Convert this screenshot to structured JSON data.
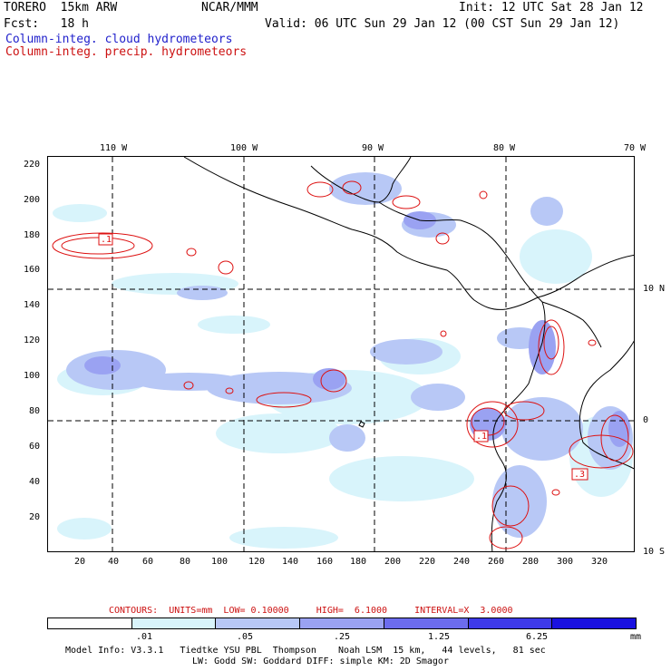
{
  "header": {
    "model": "TORERO  15km ARW",
    "org": "NCAR/MMM",
    "init": "Init: 12 UTC Sat 28 Jan 12",
    "fcst": "Fcst:   18 h",
    "valid": "Valid: 06 UTC Sun 29 Jan 12 (00 CST Sun 29 Jan 12)",
    "field1": "Column-integ. cloud hydrometeors",
    "field2": "Column-integ. precip. hydrometeors"
  },
  "axes": {
    "top_lon_labels": [
      "110 W",
      "100 W",
      "90 W",
      "80 W",
      "70 W"
    ],
    "right_lat_labels": [
      "10 N",
      "0",
      "10 S"
    ],
    "x_ticks": [
      "20",
      "40",
      "60",
      "80",
      "100",
      "120",
      "140",
      "160",
      "180",
      "200",
      "220",
      "240",
      "260",
      "280",
      "300",
      "320"
    ],
    "y_ticks": [
      "220",
      "200",
      "180",
      "160",
      "140",
      "120",
      "100",
      "80",
      "60",
      "40",
      "20"
    ]
  },
  "contour_labels": [
    ".1",
    ".1",
    ".3"
  ],
  "contours": "CONTOURS:  UNITS=mm  LOW= 0.10000     HIGH=  6.1000     INTERVAL=X  3.0000",
  "legend": {
    "unit": "mm",
    "ticks": [
      ".01",
      ".05",
      ".25",
      "1.25",
      "6.25"
    ],
    "colors": [
      "#ffffff",
      "#d8f4fb",
      "#b8c8f6",
      "#9aa2f2",
      "#6c6cee",
      "#3e3ae8",
      "#1a12e0"
    ]
  },
  "footer": {
    "line1": "Model Info: V3.3.1   Tiedtke YSU PBL  Thompson    Noah LSM  15 km,   44 levels,   81 sec",
    "line2": "LW: Godd SW: Goddard DIFF: simple KM: 2D Smagor"
  }
}
